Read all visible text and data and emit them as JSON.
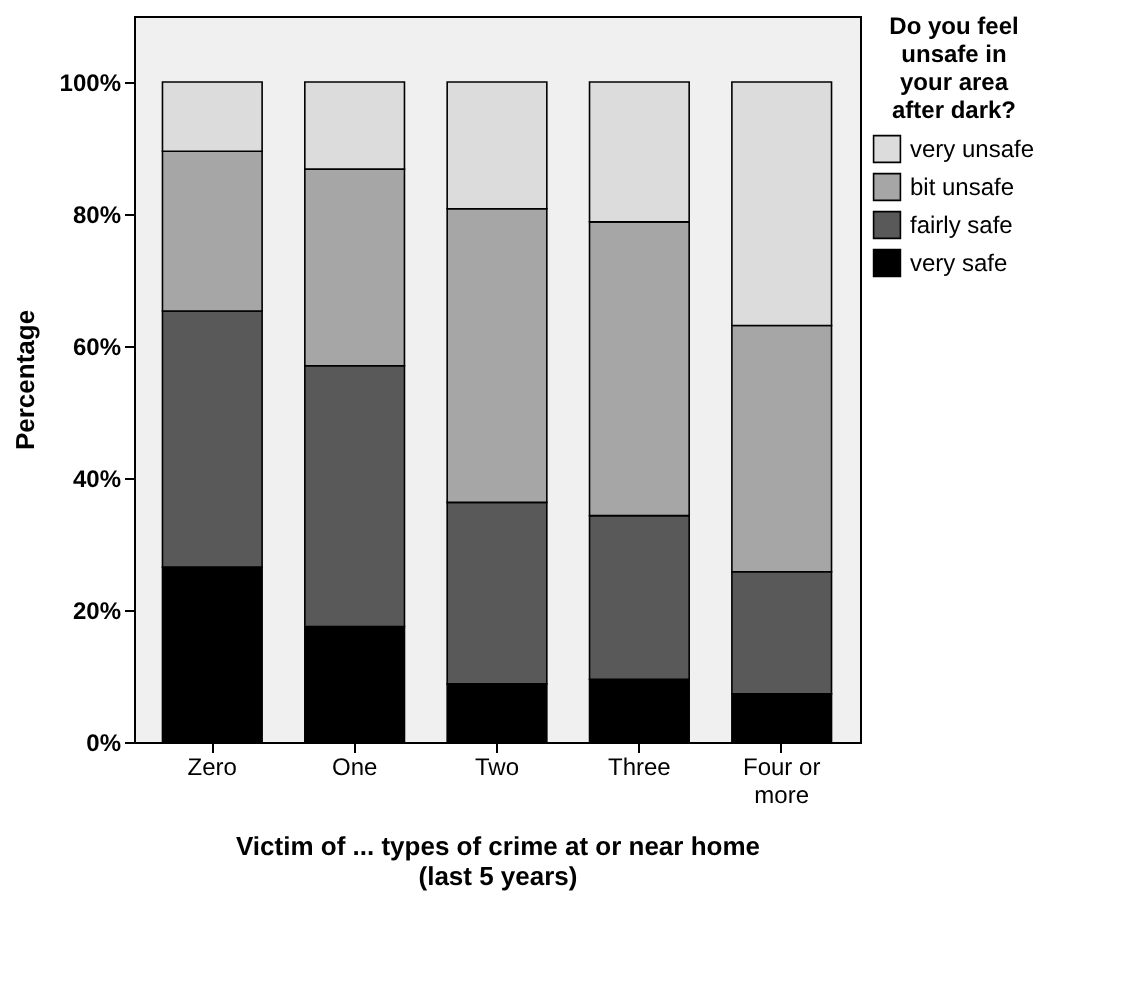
{
  "chart_data": {
    "type": "bar",
    "stacked": true,
    "xlabel": "Victim of ... types of crime at or near home (last 5 years)",
    "ylabel": "Percentage",
    "legend_title": "Do you feel unsafe in your area after dark?",
    "legend": "top right",
    "grid": false,
    "categories": [
      "Zero",
      "One",
      "Two",
      "Three",
      "Four or more"
    ],
    "series": [
      {
        "name": "very safe",
        "color": "#000000",
        "values": [
          26.5,
          17.5,
          8.8,
          9.5,
          7.3
        ]
      },
      {
        "name": "fairly safe",
        "color": "#595959",
        "values": [
          38.8,
          39.5,
          27.5,
          24.8,
          18.5
        ]
      },
      {
        "name": "bit unsafe",
        "color": "#a6a6a6",
        "values": [
          24.2,
          29.8,
          44.5,
          44.5,
          37.3
        ]
      },
      {
        "name": "very unsafe",
        "color": "#dcdcdc",
        "values": [
          10.5,
          13.2,
          19.2,
          21.2,
          36.9
        ]
      }
    ],
    "ylim": [
      0,
      110
    ],
    "yticks": [
      {
        "value": 0,
        "label": "0%"
      },
      {
        "value": 20,
        "label": "20%"
      },
      {
        "value": 40,
        "label": "40%"
      },
      {
        "value": 60,
        "label": "60%"
      },
      {
        "value": 80,
        "label": "80%"
      },
      {
        "value": 100,
        "label": "100%"
      }
    ]
  }
}
